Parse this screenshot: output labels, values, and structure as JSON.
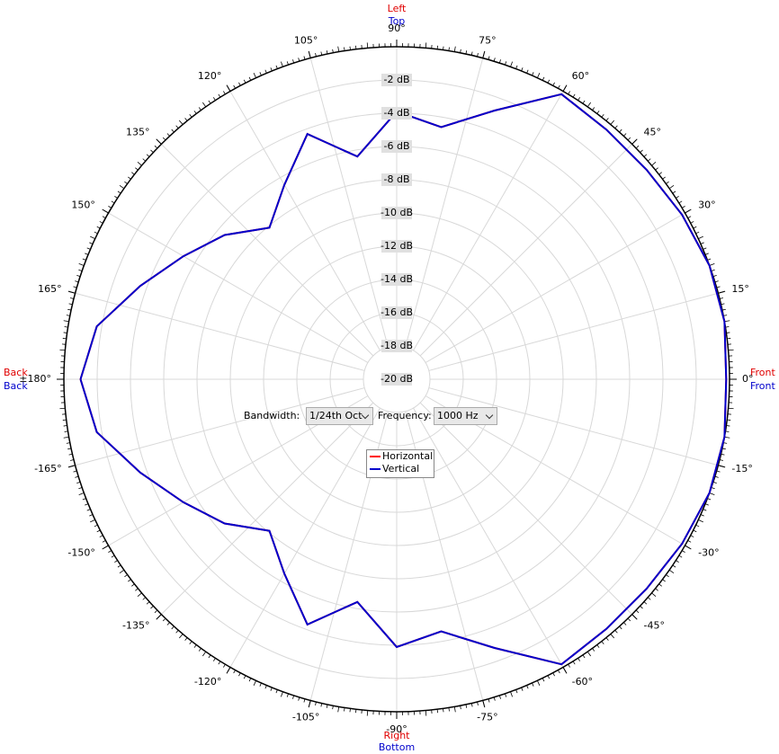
{
  "chart_data": {
    "type": "polar",
    "direction_labels": {
      "top": [
        "Left",
        "Top"
      ],
      "bottom": [
        "Right",
        "Bottom"
      ],
      "left": [
        "Back",
        "Back"
      ],
      "right": [
        "Front",
        "Front"
      ]
    },
    "x": [
      -180,
      -170,
      -160,
      -150,
      -140,
      -130,
      -120,
      -110,
      -100,
      -90,
      -80,
      -70,
      -60,
      -50,
      -40,
      -30,
      -20,
      -10,
      0,
      10,
      20,
      30,
      40,
      50,
      60,
      70,
      80,
      90,
      100,
      110,
      120,
      130,
      140,
      150,
      160,
      170,
      180
    ],
    "series": [
      {
        "name": "Horizontal",
        "color": "#ff0000",
        "values": [
          -1.0,
          -1.7,
          -3.6,
          -5.2,
          -6.5,
          -8.1,
          -6.5,
          -4.3,
          -6.4,
          -3.9,
          -4.6,
          -2.8,
          -0.2,
          -0.4,
          -0.4,
          -0.2,
          0,
          0,
          -0.2,
          0,
          0,
          -0.2,
          -0.4,
          -0.4,
          -0.2,
          -2.8,
          -4.6,
          -3.9,
          -6.4,
          -4.3,
          -6.5,
          -8.1,
          -6.5,
          -5.2,
          -3.6,
          -1.7,
          -1.0
        ]
      },
      {
        "name": "Vertical",
        "color": "#0000cc",
        "values": [
          -1.0,
          -1.7,
          -3.6,
          -5.2,
          -6.5,
          -8.1,
          -6.5,
          -4.3,
          -6.4,
          -3.9,
          -4.6,
          -2.8,
          -0.2,
          -0.4,
          -0.4,
          -0.2,
          0,
          0,
          -0.2,
          0,
          0,
          -0.2,
          -0.4,
          -0.4,
          -0.2,
          -2.8,
          -4.6,
          -3.9,
          -6.4,
          -4.3,
          -6.5,
          -8.1,
          -6.5,
          -5.2,
          -3.6,
          -1.7,
          -1.0
        ]
      }
    ],
    "xlim": [
      -180,
      180
    ],
    "xticks": [
      {
        "value": -165,
        "label": "-165°"
      },
      {
        "value": -150,
        "label": "-150°"
      },
      {
        "value": -135,
        "label": "-135°"
      },
      {
        "value": -120,
        "label": "-120°"
      },
      {
        "value": -105,
        "label": "-105°"
      },
      {
        "value": -90,
        "label": "-90°"
      },
      {
        "value": -75,
        "label": "-75°"
      },
      {
        "value": -60,
        "label": "-60°"
      },
      {
        "value": -45,
        "label": "-45°"
      },
      {
        "value": -30,
        "label": "-30°"
      },
      {
        "value": -15,
        "label": "-15°"
      },
      {
        "value": 0,
        "label": "0°"
      },
      {
        "value": 15,
        "label": "15°"
      },
      {
        "value": 30,
        "label": "30°"
      },
      {
        "value": 45,
        "label": "45°"
      },
      {
        "value": 60,
        "label": "60°"
      },
      {
        "value": 75,
        "label": "75°"
      },
      {
        "value": 90,
        "label": "90°"
      },
      {
        "value": 105,
        "label": "105°"
      },
      {
        "value": 120,
        "label": "120°"
      },
      {
        "value": 135,
        "label": "135°"
      },
      {
        "value": 150,
        "label": "150°"
      },
      {
        "value": 165,
        "label": "165°"
      },
      {
        "value": 180,
        "label": "±180°"
      }
    ],
    "ylim": [
      -20,
      0
    ],
    "yticks": [
      {
        "value": -2,
        "label": "-2 dB"
      },
      {
        "value": -4,
        "label": "-4 dB"
      },
      {
        "value": -6,
        "label": "-6 dB"
      },
      {
        "value": -8,
        "label": "-8 dB"
      },
      {
        "value": -10,
        "label": "-10 dB"
      },
      {
        "value": -12,
        "label": "-12 dB"
      },
      {
        "value": -14,
        "label": "-14 dB"
      },
      {
        "value": -16,
        "label": "-16 dB"
      },
      {
        "value": -18,
        "label": "-18 dB"
      },
      {
        "value": -20,
        "label": "-20 dB"
      }
    ],
    "grid": true,
    "controls": {
      "bandwidth_label": "Bandwidth:",
      "bandwidth": "1/24th Oct",
      "frequency_label": "Frequency:",
      "frequency": "1000 Hz"
    }
  }
}
